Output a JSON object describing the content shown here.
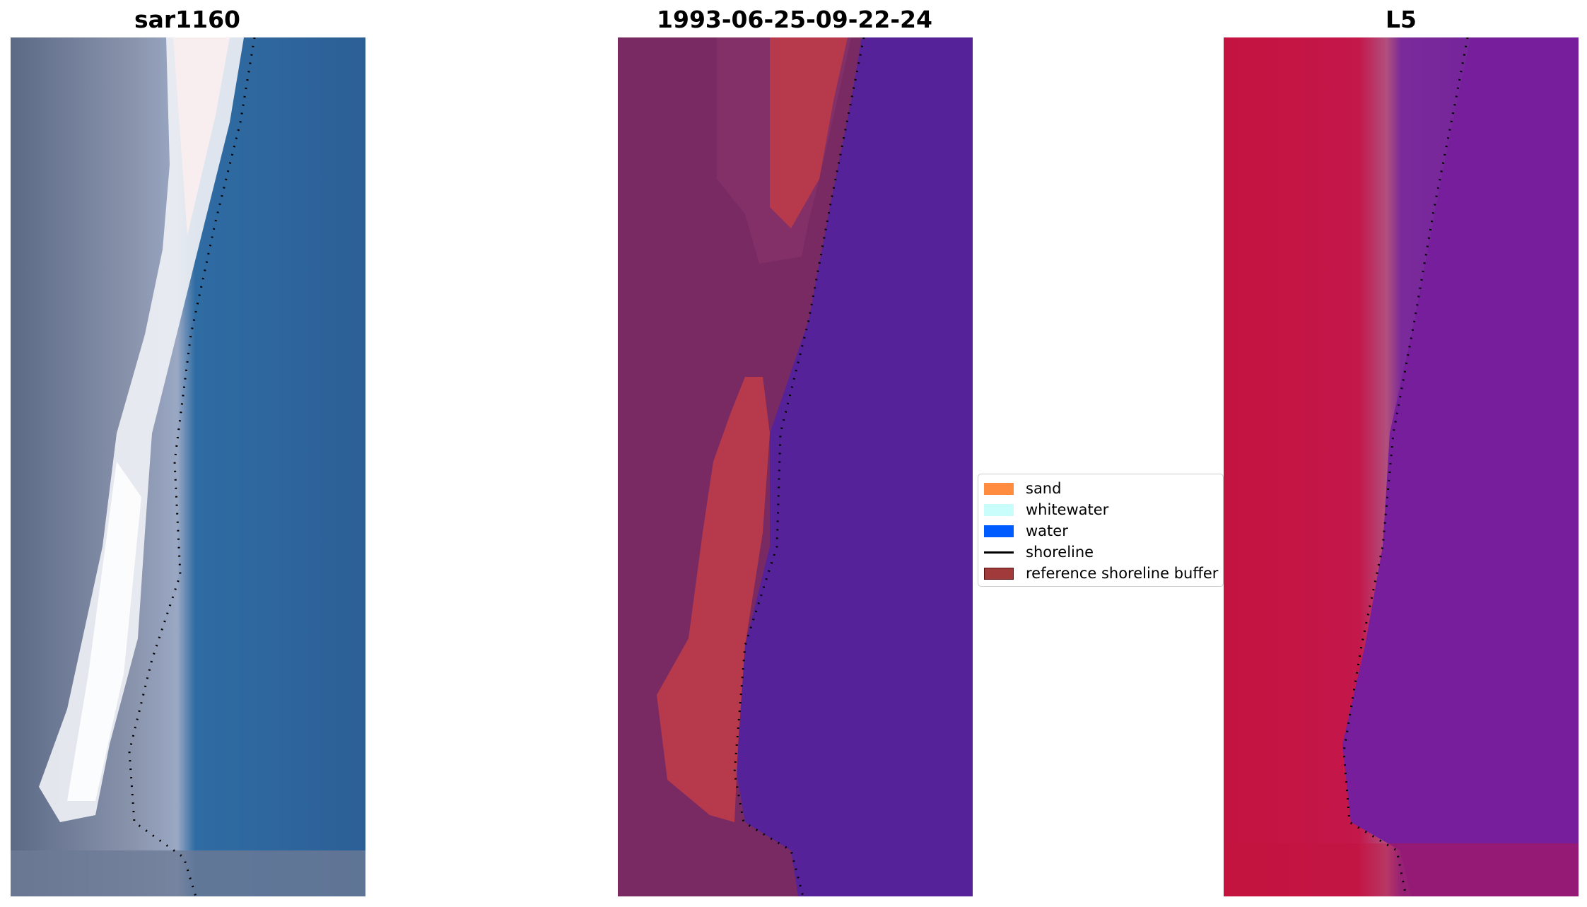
{
  "panels": [
    {
      "title": "sar1160"
    },
    {
      "title": "1993-06-25-09-22-24"
    },
    {
      "title": "L5"
    }
  ],
  "legend": {
    "items": [
      {
        "label": "sand",
        "color": "#ff8c3f",
        "kind": "patch"
      },
      {
        "label": "whitewater",
        "color": "#c9fdfc",
        "kind": "patch"
      },
      {
        "label": "water",
        "color": "#005cfe",
        "kind": "patch"
      },
      {
        "label": "shoreline",
        "color": "#000000",
        "kind": "line"
      },
      {
        "label": "reference shoreline buffer",
        "color": "#a13a3a",
        "kind": "patch"
      }
    ]
  },
  "colors": {
    "rgb_sand": "#f0e8ec",
    "rgb_land": "#5c6a86",
    "rgb_water": "#2e6a9e",
    "class_land": "#7a2a62",
    "class_buffer": "#b63a4c",
    "class_water": "#55229a",
    "index_land": "#c4133f",
    "index_water": "#6e1e9a"
  }
}
